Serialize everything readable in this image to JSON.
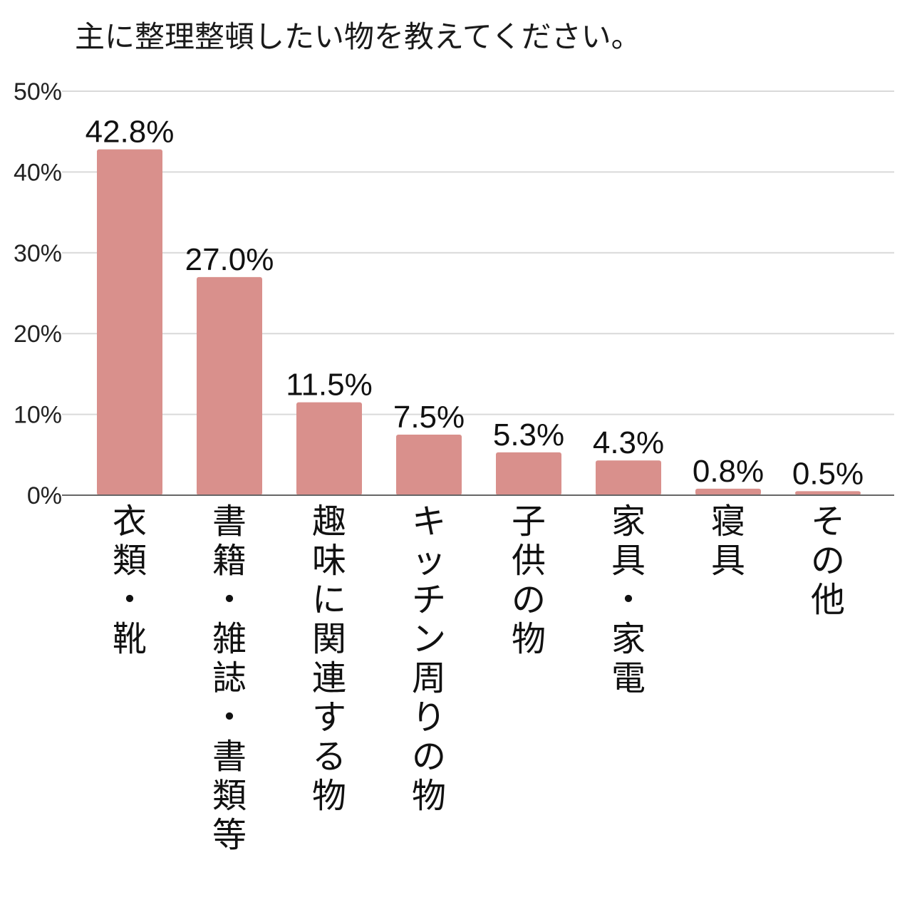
{
  "chart_data": {
    "type": "bar",
    "title": "主に整理整頓したい物を教えてください。",
    "categories": [
      "衣類・靴",
      "書籍・雑誌・書類等",
      "趣味に関連する物",
      "キッチン周りの物",
      "子供の物",
      "家具・家電",
      "寝具",
      "その他"
    ],
    "values": [
      42.8,
      27.0,
      11.5,
      7.5,
      5.3,
      4.3,
      0.8,
      0.5
    ],
    "value_labels": [
      "42.8%",
      "27.0%",
      "11.5%",
      "7.5%",
      "5.3%",
      "4.3%",
      "0.8%",
      "0.5%"
    ],
    "y_ticks": [
      0,
      10,
      20,
      30,
      40,
      50
    ],
    "y_tick_labels": [
      "0%",
      "10%",
      "20%",
      "30%",
      "40%",
      "50%"
    ],
    "ylim": [
      0,
      50
    ],
    "grid": true,
    "xlabel": "",
    "ylabel": "",
    "bar_color": "#d9908c",
    "grid_color": "#d9d9d9",
    "axis_color": "#666666"
  }
}
